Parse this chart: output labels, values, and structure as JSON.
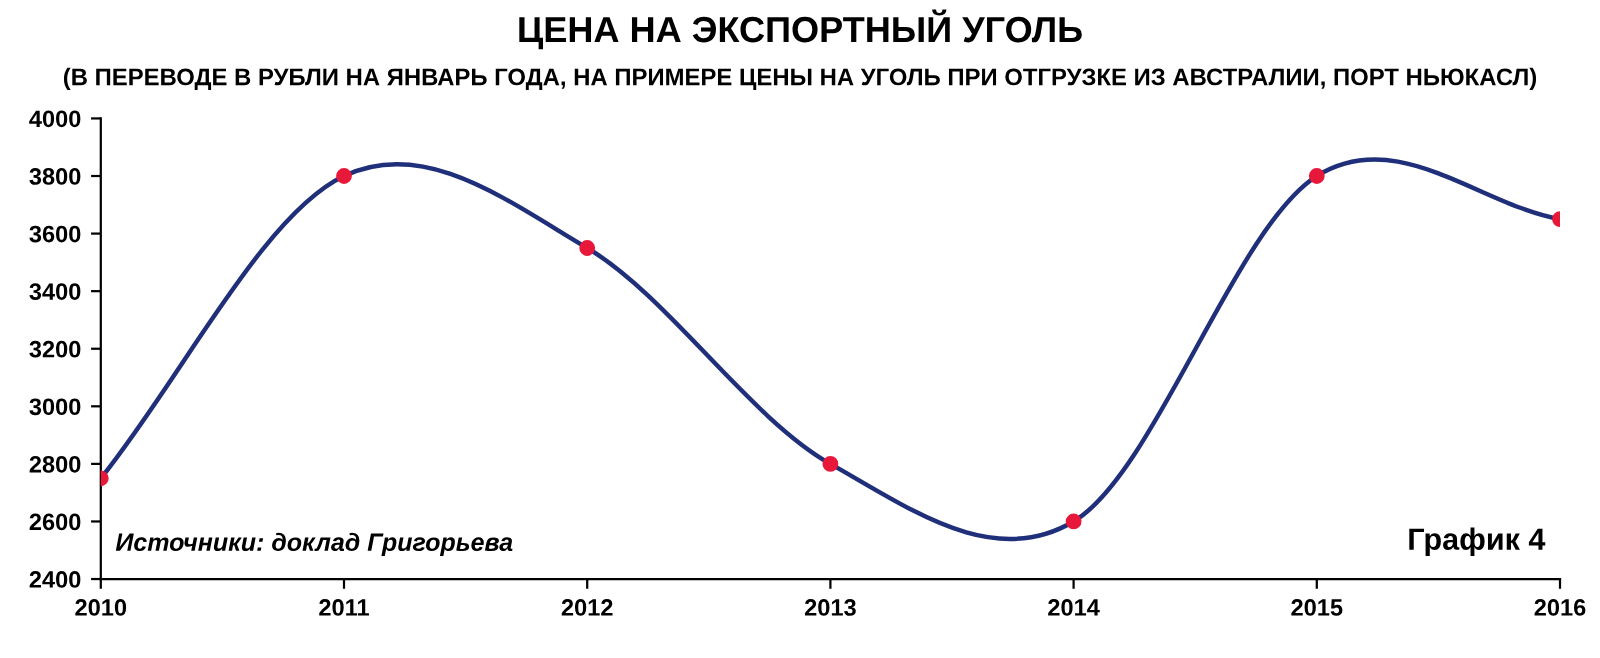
{
  "chart_data": {
    "type": "line",
    "title": "ЦЕНА НА ЭКСПОРТНЫЙ УГОЛЬ",
    "subtitle": "(В ПЕРЕВОДЕ В РУБЛИ НА ЯНВАРЬ ГОДА, НА ПРИМЕРЕ ЦЕНЫ НА УГОЛЬ ПРИ ОТГРУЗКЕ ИЗ АВСТРАЛИИ, ПОРТ НЬЮКАСЛ)",
    "x": [
      2010,
      2011,
      2012,
      2013,
      2014,
      2015,
      2016
    ],
    "series": [
      {
        "color": "#1f2f7a",
        "values": [
          2750,
          3800,
          3550,
          2800,
          2600,
          3800,
          3650
        ],
        "marker": "none"
      },
      {
        "type": "scatter",
        "color": "#e8183a",
        "values": [
          2750,
          3800,
          3550,
          2800,
          2600,
          3800,
          3650
        ],
        "marker": "circle"
      }
    ],
    "xlim": [
      2010,
      2016
    ],
    "xticks": [
      2010,
      2011,
      2012,
      2013,
      2014,
      2015,
      2016
    ],
    "ylim": [
      2400,
      4000
    ],
    "yticks": [
      2400,
      2600,
      2800,
      3000,
      3200,
      3400,
      3600,
      3800,
      4000
    ],
    "grid": false,
    "legend": false,
    "annotations": [
      "Источники: доклад Григорьева",
      "График 4"
    ]
  }
}
